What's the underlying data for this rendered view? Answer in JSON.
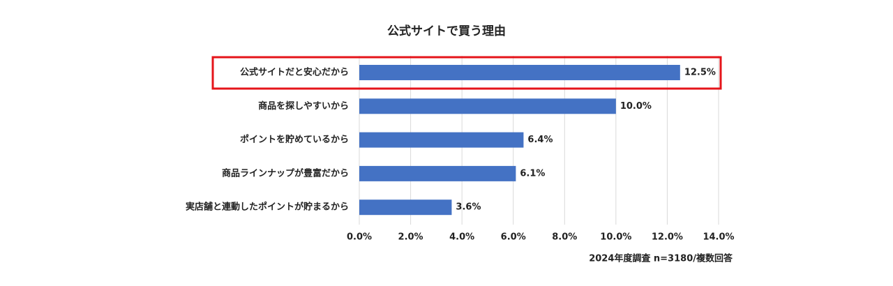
{
  "chart_data": {
    "type": "hbar",
    "title": "公式サイトで買う理由",
    "categories": [
      "公式サイトだと安心だから",
      "商品を探しやすいから",
      "ポイントを貯めているから",
      "商品ラインナップが豊富だから",
      "実店舗と連動したポイントが貯まるから"
    ],
    "values": [
      12.5,
      10.0,
      6.4,
      6.1,
      3.6
    ],
    "value_labels": [
      "12.5%",
      "10.0%",
      "6.4%",
      "6.1%",
      "3.6%"
    ],
    "color": "#4472c4",
    "xlim": [
      0,
      14
    ],
    "xticks": [
      {
        "value": 0,
        "label": "0.0%"
      },
      {
        "value": 2,
        "label": "2.0%"
      },
      {
        "value": 4,
        "label": "4.0%"
      },
      {
        "value": 6,
        "label": "6.0%"
      },
      {
        "value": 8,
        "label": "8.0%"
      },
      {
        "value": 10,
        "label": "10.0%"
      },
      {
        "value": 12,
        "label": "12.0%"
      },
      {
        "value": 14,
        "label": "14.0%"
      }
    ],
    "grid": true,
    "note": "2024年度調査 n=3180/複数回答"
  }
}
